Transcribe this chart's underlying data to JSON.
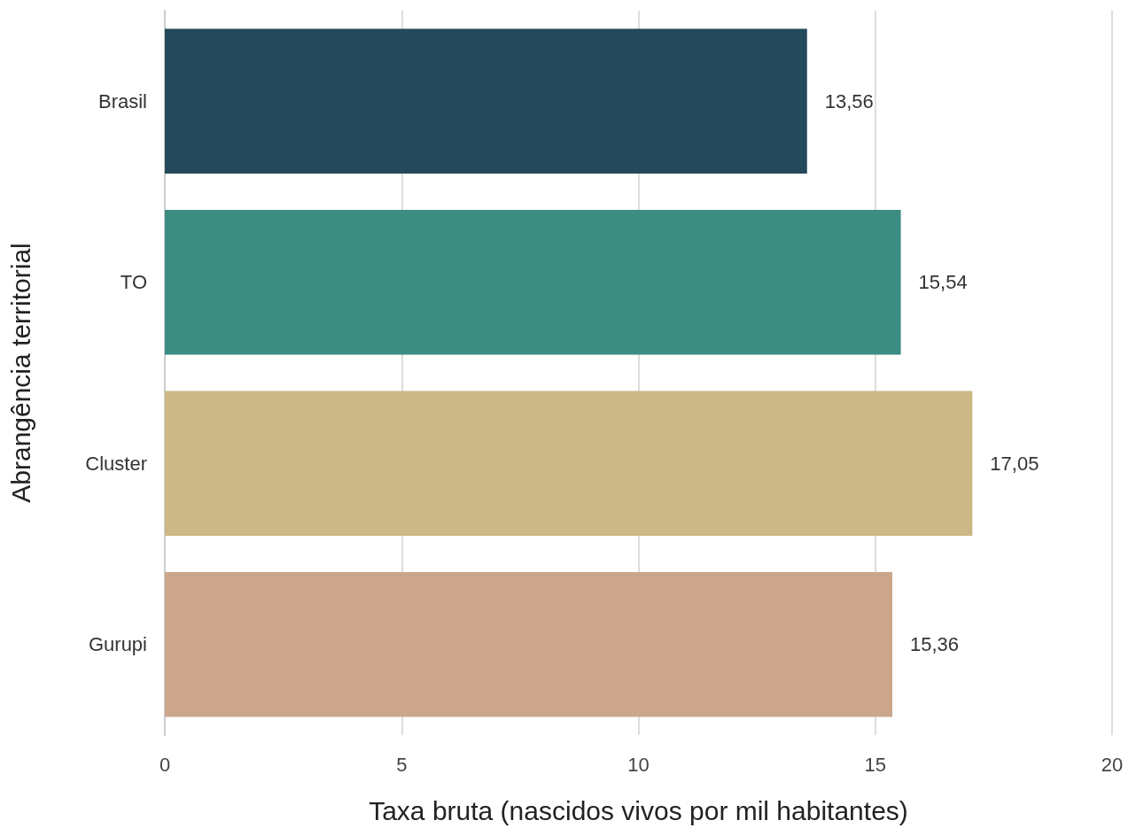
{
  "chart_data": {
    "type": "bar",
    "orientation": "horizontal",
    "xlabel": "Taxa bruta (nascidos vivos por mil habitantes)",
    "ylabel": "Abrangência territorial",
    "categories": [
      "Brasil",
      "TO",
      "Cluster",
      "Gurupi"
    ],
    "values": [
      13.56,
      15.54,
      17.05,
      15.36
    ],
    "colors": [
      "#24495a",
      "#3c8c82",
      "#cbb886",
      "#cba68a"
    ],
    "value_labels": [
      "13,56",
      "15,54",
      "17,05",
      "15,36"
    ],
    "xlim": [
      0,
      20
    ],
    "xticks": [
      0,
      5,
      10,
      15,
      20
    ],
    "grid": "x"
  }
}
